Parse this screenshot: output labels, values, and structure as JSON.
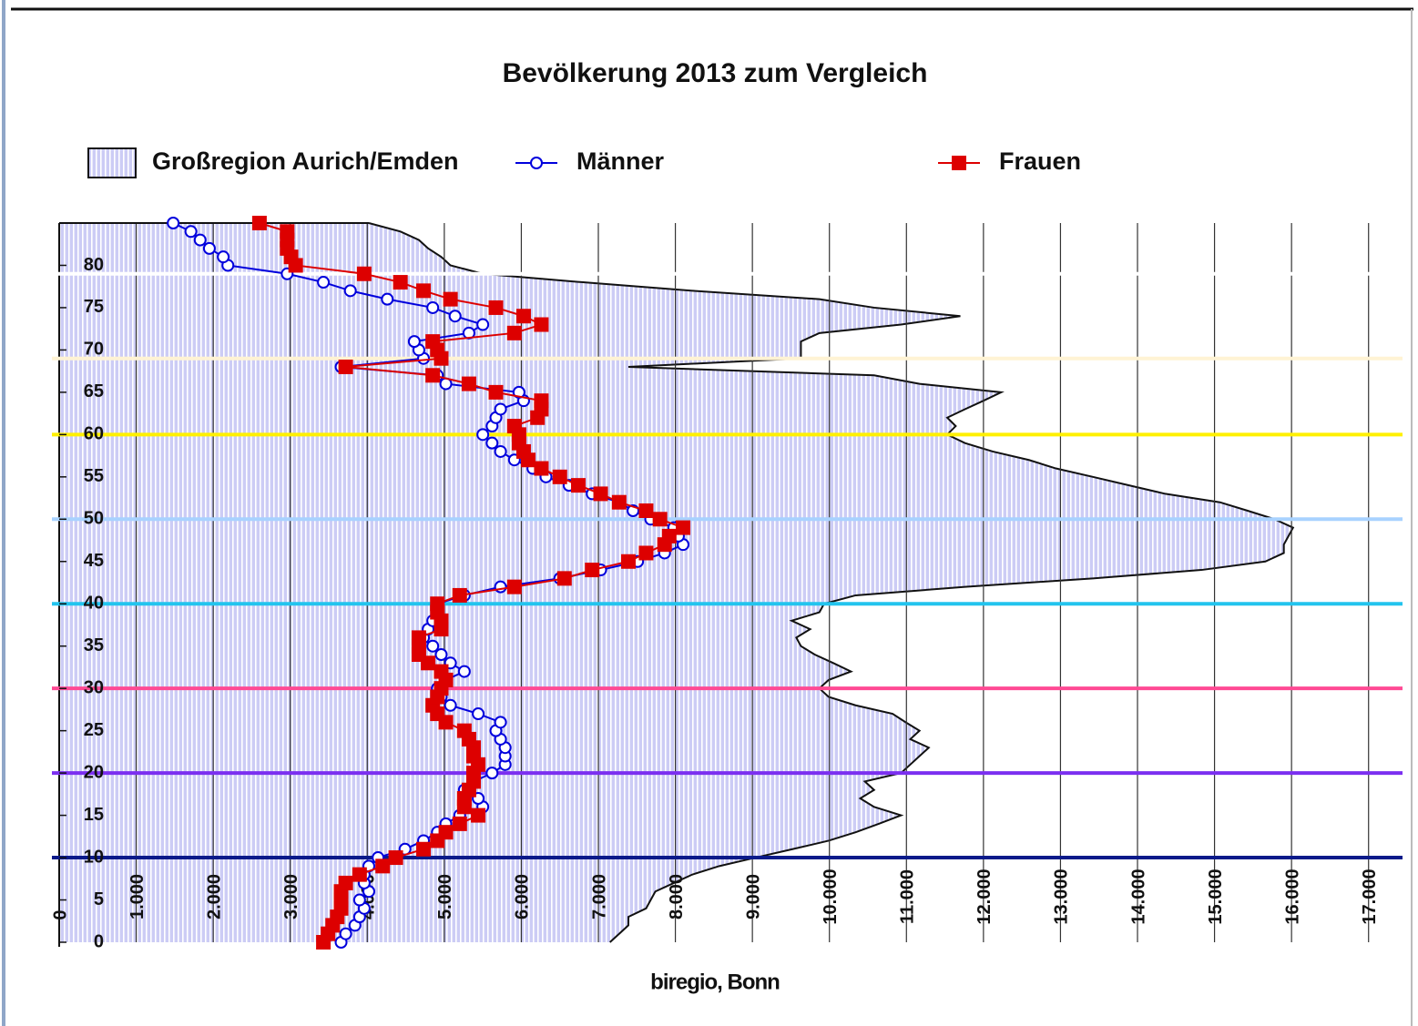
{
  "chart_data": {
    "type": "line",
    "title": "Bevölkerung 2013 zum Vergleich",
    "source": "biregio, Bonn",
    "legend": "top",
    "grid": true,
    "y": [
      0,
      1,
      2,
      3,
      4,
      5,
      6,
      7,
      8,
      9,
      10,
      11,
      12,
      13,
      14,
      15,
      16,
      17,
      18,
      19,
      20,
      21,
      22,
      23,
      24,
      25,
      26,
      27,
      28,
      29,
      30,
      31,
      32,
      33,
      34,
      35,
      36,
      37,
      38,
      39,
      40,
      41,
      42,
      43,
      44,
      45,
      46,
      47,
      48,
      49,
      50,
      51,
      52,
      53,
      54,
      55,
      56,
      57,
      58,
      59,
      60,
      61,
      62,
      63,
      64,
      65,
      66,
      67,
      68,
      69,
      70,
      71,
      72,
      73,
      74,
      75,
      76,
      77,
      78,
      79,
      80,
      81,
      82,
      83,
      84,
      85
    ],
    "ylim": [
      0,
      85
    ],
    "yticks": [
      0,
      5,
      10,
      15,
      20,
      25,
      30,
      35,
      40,
      45,
      50,
      55,
      60,
      65,
      70,
      75,
      80
    ],
    "xlim": [
      0,
      17500
    ],
    "xticks": [
      0,
      {
        "value": 1000,
        "label": "1.000"
      },
      {
        "value": 2000,
        "label": "2.000"
      },
      {
        "value": 3000,
        "label": "3.000"
      },
      {
        "value": 4000,
        "label": "4.000"
      },
      {
        "value": 5000,
        "label": "5.000"
      },
      {
        "value": 6000,
        "label": "6.000"
      },
      {
        "value": 7000,
        "label": "7.000"
      },
      {
        "value": 8000,
        "label": "8.000"
      },
      {
        "value": 9000,
        "label": "9.000"
      },
      {
        "value": 10000,
        "label": "10.000"
      },
      {
        "value": 11000,
        "label": "11.000"
      },
      {
        "value": 12000,
        "label": "12.000"
      },
      {
        "value": 13000,
        "label": "13.000"
      },
      {
        "value": 14000,
        "label": "14.000"
      },
      {
        "value": 15000,
        "label": "15.000"
      },
      {
        "value": 16000,
        "label": "16.000"
      },
      {
        "value": 17000,
        "label": "17.000"
      }
    ],
    "series": [
      {
        "name": "Großregion Aurich/Emden",
        "kind": "area",
        "color": "#ccccf5",
        "values": [
          7150,
          7270,
          7390,
          7390,
          7620,
          7680,
          7740,
          7980,
          8220,
          8570,
          9040,
          9520,
          9990,
          10340,
          10640,
          10930,
          10580,
          10400,
          10580,
          10460,
          10930,
          11050,
          11170,
          11290,
          11050,
          11170,
          10990,
          10820,
          10340,
          9990,
          9870,
          9990,
          10280,
          10050,
          9810,
          9630,
          9570,
          9750,
          9510,
          9870,
          9930,
          10340,
          11760,
          13420,
          14830,
          15660,
          15900,
          15900,
          15960,
          16020,
          15780,
          15430,
          15070,
          14360,
          13890,
          13420,
          12940,
          12590,
          12120,
          11760,
          11530,
          11640,
          11530,
          11760,
          12000,
          12230,
          11170,
          10580,
          7390,
          9630,
          9630,
          9630,
          9870,
          10930,
          11700,
          10580,
          9870,
          8220,
          6800,
          5500,
          5080,
          4960,
          4790,
          4670,
          4430,
          4020
        ]
      },
      {
        "name": "Männer",
        "kind": "line",
        "marker": "circle",
        "color": "#0000dd",
        "values": [
          3660,
          3720,
          3840,
          3900,
          3960,
          3900,
          4020,
          3960,
          3960,
          4020,
          4140,
          4490,
          4730,
          4910,
          5020,
          5200,
          5500,
          5440,
          5260,
          5380,
          5620,
          5790,
          5790,
          5790,
          5730,
          5670,
          5730,
          5440,
          5080,
          4960,
          4910,
          5020,
          5260,
          5080,
          4960,
          4850,
          4730,
          4790,
          4850,
          4910,
          4910,
          5260,
          5730,
          6500,
          7030,
          7510,
          7860,
          8100,
          8040,
          7980,
          7680,
          7450,
          7270,
          6920,
          6620,
          6320,
          6150,
          5910,
          5730,
          5620,
          5500,
          5620,
          5670,
          5730,
          6030,
          5970,
          5020,
          4910,
          3660,
          4730,
          4670,
          4610,
          5320,
          5500,
          5140,
          4850,
          4260,
          3780,
          3430,
          2960,
          2190,
          2130,
          1950,
          1830,
          1710,
          1480
        ]
      },
      {
        "name": "Frauen",
        "kind": "line",
        "marker": "square",
        "color": "#dd0000",
        "values": [
          3430,
          3490,
          3550,
          3610,
          3660,
          3660,
          3660,
          3720,
          3900,
          4200,
          4370,
          4730,
          4910,
          5020,
          5200,
          5440,
          5260,
          5260,
          5320,
          5380,
          5380,
          5440,
          5380,
          5380,
          5320,
          5260,
          5020,
          4910,
          4850,
          4910,
          4960,
          5020,
          4960,
          4790,
          4670,
          4670,
          4670,
          4960,
          4960,
          4910,
          4910,
          5200,
          5910,
          6560,
          6920,
          7390,
          7620,
          7860,
          7920,
          8100,
          7800,
          7620,
          7270,
          7030,
          6740,
          6500,
          6260,
          6090,
          6030,
          5970,
          5970,
          5910,
          6210,
          6260,
          6260,
          5670,
          5320,
          4850,
          3720,
          4960,
          4910,
          4850,
          5910,
          6260,
          6030,
          5670,
          5080,
          4730,
          4430,
          3960,
          3070,
          3010,
          2960,
          2960,
          2960,
          2600
        ]
      }
    ],
    "reference_lines": [
      {
        "y": 10,
        "color": "#0a1a8a"
      },
      {
        "y": 20,
        "color": "#7b2ff0"
      },
      {
        "y": 30,
        "color": "#ff4a94"
      },
      {
        "y": 40,
        "color": "#22c4ee"
      },
      {
        "y": 50,
        "color": "#a8d2ff"
      },
      {
        "y": 60,
        "color": "#fff000"
      },
      {
        "y": 69,
        "color": "#fff3d4"
      },
      {
        "y": 79,
        "color": "#ffffff"
      }
    ]
  }
}
